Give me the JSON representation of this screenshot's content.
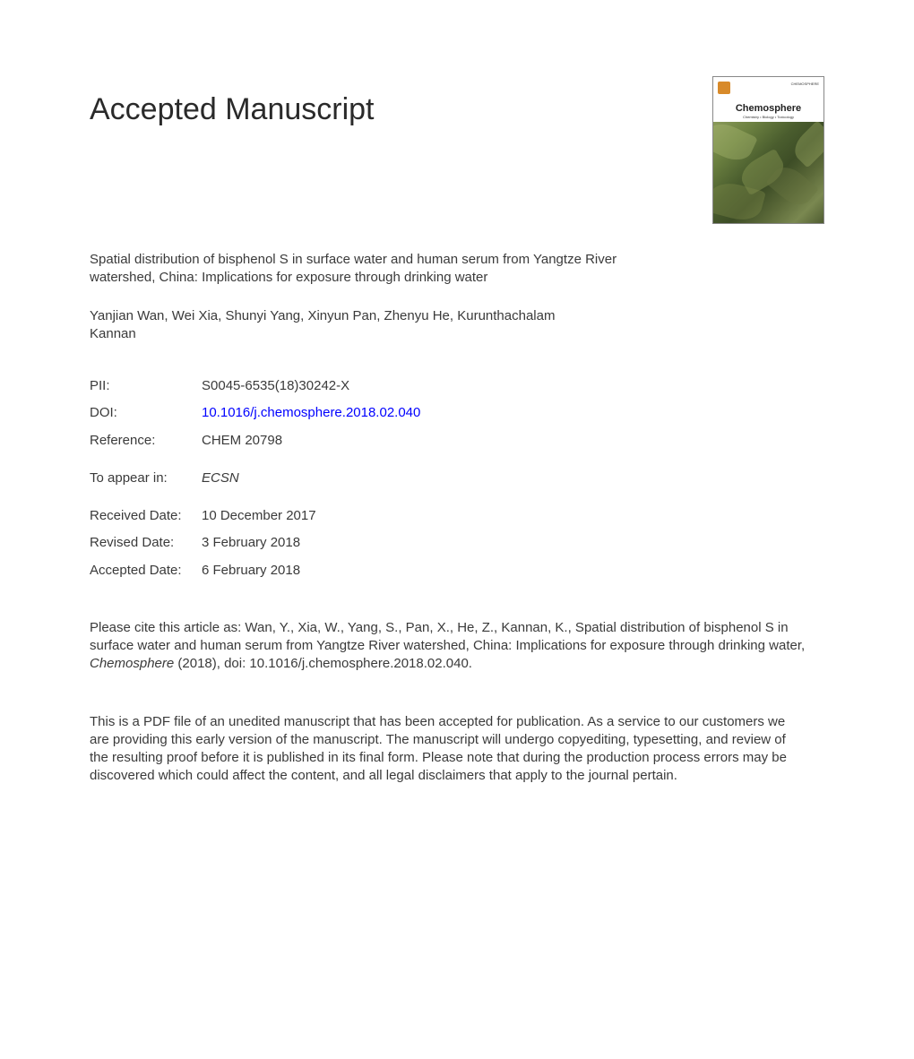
{
  "heading": "Accepted Manuscript",
  "journal_cover": {
    "name": "Chemosphere",
    "subtitle": "Chemistry • Biology • Toxicology",
    "label_top": "CHEMOSPHERE"
  },
  "article": {
    "title": "Spatial distribution of bisphenol S in surface water and human serum from Yangtze River watershed, China: Implications for exposure through drinking water",
    "authors": "Yanjian Wan, Wei Xia, Shunyi Yang, Xinyun Pan, Zhenyu He, Kurunthachalam Kannan"
  },
  "meta": {
    "pii_label": "PII:",
    "pii_value": "S0045-6535(18)30242-X",
    "doi_label": "DOI:",
    "doi_value": "10.1016/j.chemosphere.2018.02.040",
    "reference_label": "Reference:",
    "reference_value": "CHEM 20798"
  },
  "appear": {
    "label": "To appear in:",
    "value": "ECSN"
  },
  "dates": {
    "received_label": "Received Date:",
    "received_value": "10 December 2017",
    "revised_label": "Revised Date:",
    "revised_value": "3 February 2018",
    "accepted_label": "Accepted Date:",
    "accepted_value": "6 February 2018"
  },
  "citation": {
    "prefix": "Please cite this article as: Wan, Y., Xia, W., Yang, S., Pan, X., He, Z., Kannan, K., Spatial distribution of bisphenol S in surface water and human serum from Yangtze River watershed, China: Implications for exposure through drinking water, ",
    "journal_italic": "Chemosphere",
    "suffix": " (2018), doi: 10.1016/j.chemosphere.2018.02.040."
  },
  "disclaimer": "This is a PDF file of an unedited manuscript that has been accepted for publication. As a service to our customers we are providing this early version of the manuscript. The manuscript will undergo copyediting, typesetting, and review of the resulting proof before it is published in its final form. Please note that during the production process errors may be discovered which could affect the content, and all legal disclaimers that apply to the journal pertain.",
  "colors": {
    "text": "#3a3a3a",
    "link": "#0000ff",
    "background": "#ffffff"
  }
}
